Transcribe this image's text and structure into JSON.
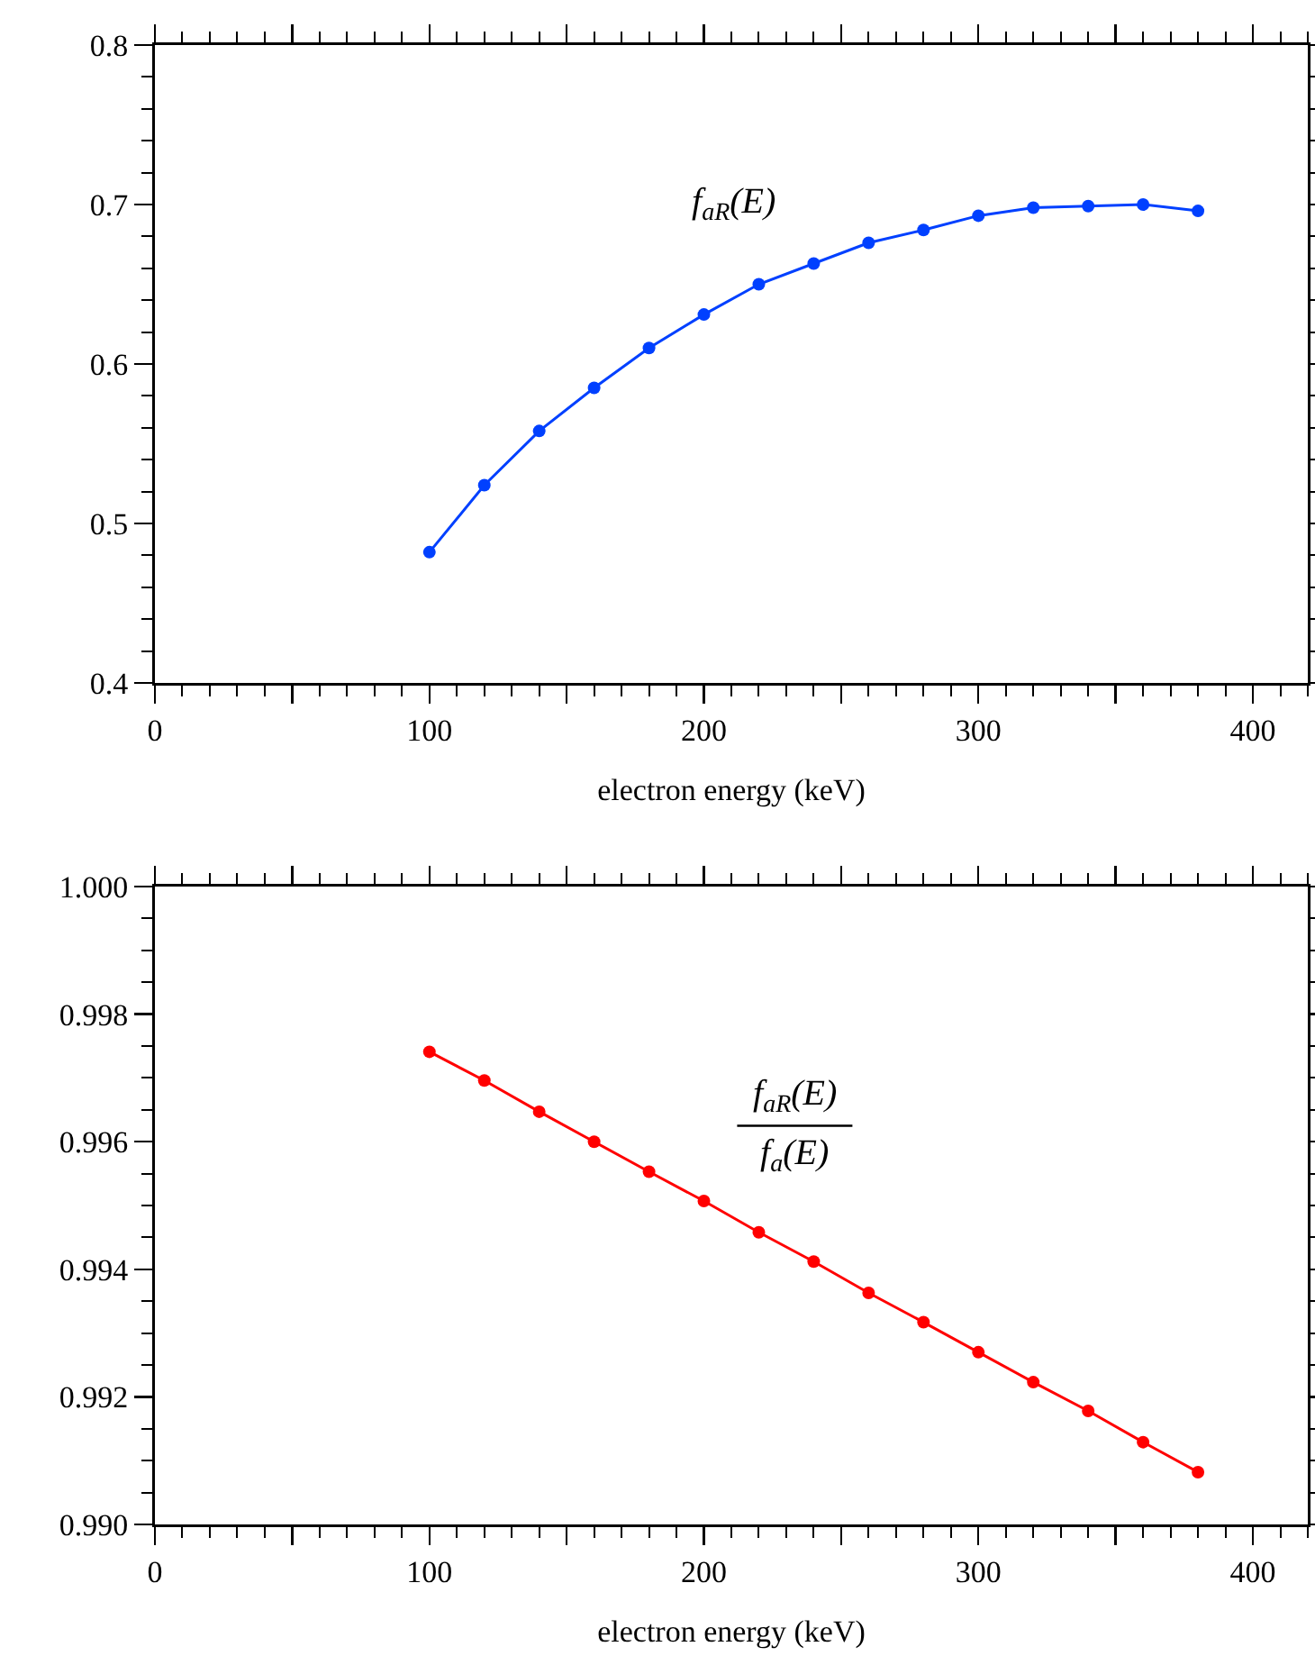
{
  "chart_data": [
    {
      "type": "line",
      "xlabel": "electron energy (keV)",
      "marker": "circle",
      "line_style": "solid",
      "x": [
        100,
        120,
        140,
        160,
        180,
        200,
        220,
        240,
        260,
        280,
        300,
        320,
        340,
        360,
        380
      ],
      "series": [
        {
          "color": "#0040ff",
          "values": [
            0.482,
            0.524,
            0.558,
            0.585,
            0.61,
            0.631,
            0.65,
            0.663,
            0.676,
            0.684,
            0.693,
            0.698,
            0.699,
            0.7,
            0.696
          ]
        }
      ],
      "xlim": [
        0,
        420
      ],
      "xticks": [
        0,
        {
          "value": 50,
          "label": null
        },
        100,
        {
          "value": 150,
          "label": null
        },
        200,
        {
          "value": 250,
          "label": null
        },
        300,
        {
          "value": 350,
          "label": null
        },
        400
      ],
      "ylim": [
        0.4,
        0.8
      ],
      "yticks": [
        0.4,
        0.5,
        0.6,
        0.7,
        0.8
      ],
      "annotations": [
        "f$_{aR}$(E)"
      ]
    },
    {
      "type": "line",
      "xlabel": "electron energy (keV)",
      "marker": "circle",
      "line_style": "solid",
      "x": [
        100,
        120,
        140,
        160,
        180,
        200,
        220,
        240,
        260,
        280,
        300,
        320,
        340,
        360,
        380
      ],
      "series": [
        {
          "color": "#ff0000",
          "values": [
            0.99741,
            0.99696,
            0.99647,
            0.996,
            0.99553,
            0.99507,
            0.99458,
            0.99412,
            0.99363,
            0.99317,
            0.9927,
            0.99223,
            0.99178,
            0.99129,
            0.99082
          ]
        }
      ],
      "xlim": [
        0,
        420
      ],
      "xticks": [
        0,
        {
          "value": 50,
          "label": null
        },
        100,
        {
          "value": 150,
          "label": null
        },
        200,
        {
          "value": 250,
          "label": null
        },
        300,
        {
          "value": 350,
          "label": null
        },
        400
      ],
      "ylim": [
        0.99,
        1.0
      ],
      "yticks": [
        {
          "value": 0.99,
          "label": "0.990"
        },
        {
          "value": 0.992,
          "label": "0.992"
        },
        {
          "value": 0.994,
          "label": "0.994"
        },
        {
          "value": 0.996,
          "label": "0.996"
        },
        {
          "value": 0.998,
          "label": "0.998"
        },
        {
          "value": 1.0,
          "label": "1.000"
        }
      ],
      "annotations": [
        "f$_{aR}$(E)",
        "f$_{a}$(E)"
      ]
    }
  ]
}
